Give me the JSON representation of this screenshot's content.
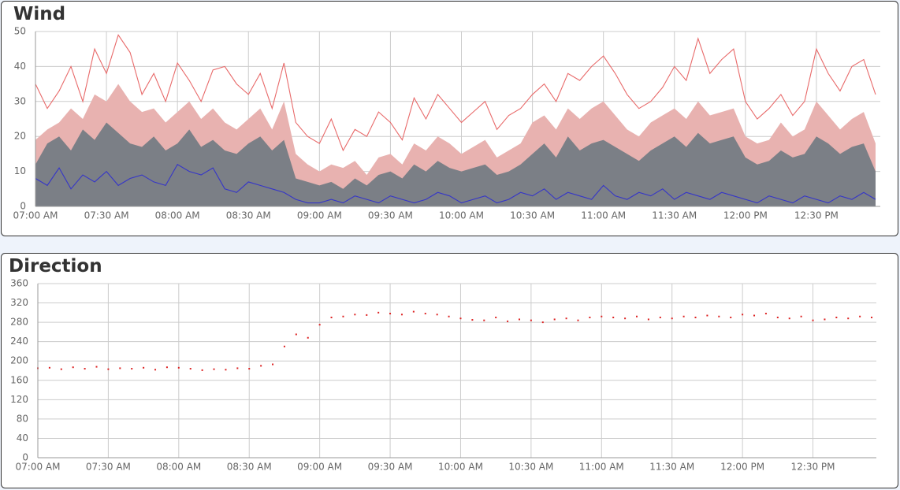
{
  "chart_data": [
    {
      "type": "area",
      "title": "Wind",
      "x": [
        "07:00 AM",
        "07:05 AM",
        "07:10 AM",
        "07:15 AM",
        "07:20 AM",
        "07:25 AM",
        "07:30 AM",
        "07:35 AM",
        "07:40 AM",
        "07:45 AM",
        "07:50 AM",
        "07:55 AM",
        "08:00 AM",
        "08:05 AM",
        "08:10 AM",
        "08:15 AM",
        "08:20 AM",
        "08:25 AM",
        "08:30 AM",
        "08:35 AM",
        "08:40 AM",
        "08:45 AM",
        "08:50 AM",
        "08:55 AM",
        "09:00 AM",
        "09:05 AM",
        "09:10 AM",
        "09:15 AM",
        "09:20 AM",
        "09:25 AM",
        "09:30 AM",
        "09:35 AM",
        "09:40 AM",
        "09:45 AM",
        "09:50 AM",
        "09:55 AM",
        "10:00 AM",
        "10:05 AM",
        "10:10 AM",
        "10:15 AM",
        "10:20 AM",
        "10:25 AM",
        "10:30 AM",
        "10:35 AM",
        "10:40 AM",
        "10:45 AM",
        "10:50 AM",
        "10:55 AM",
        "11:00 AM",
        "11:05 AM",
        "11:10 AM",
        "11:15 AM",
        "11:20 AM",
        "11:25 AM",
        "11:30 AM",
        "11:35 AM",
        "11:40 AM",
        "11:45 AM",
        "11:50 AM",
        "11:55 AM",
        "12:00 PM",
        "12:05 PM",
        "12:10 PM",
        "12:15 PM",
        "12:20 PM",
        "12:25 PM",
        "12:30 PM",
        "12:35 PM",
        "12:40 PM",
        "12:45 PM",
        "12:50 PM",
        "12:55 PM"
      ],
      "xlim": [
        "07:00 AM",
        "12:57 PM"
      ],
      "xticks": [
        "07:00 AM",
        "07:30 AM",
        "08:00 AM",
        "08:30 AM",
        "09:00 AM",
        "09:30 AM",
        "10:00 AM",
        "10:30 AM",
        "11:00 AM",
        "11:30 AM",
        "12:00 PM",
        "12:30 PM"
      ],
      "ylim": [
        0,
        50
      ],
      "yticks": [
        0,
        10,
        20,
        30,
        40,
        50
      ],
      "grid": true,
      "series": [
        {
          "type": "area",
          "color": "#e8b2b0",
          "values": [
            19,
            22,
            24,
            28,
            25,
            32,
            30,
            35,
            30,
            27,
            28,
            24,
            27,
            30,
            25,
            28,
            24,
            22,
            25,
            28,
            22,
            30,
            15,
            12,
            10,
            12,
            11,
            13,
            9,
            14,
            15,
            12,
            18,
            16,
            20,
            18,
            15,
            17,
            19,
            14,
            16,
            18,
            24,
            26,
            22,
            28,
            25,
            28,
            30,
            26,
            22,
            20,
            24,
            26,
            28,
            25,
            30,
            26,
            27,
            28,
            20,
            18,
            19,
            24,
            20,
            22,
            30,
            26,
            22,
            25,
            27,
            18
          ]
        },
        {
          "type": "area",
          "color": "#7b7f86",
          "values": [
            12,
            18,
            20,
            16,
            22,
            19,
            24,
            21,
            18,
            17,
            20,
            16,
            18,
            22,
            17,
            19,
            16,
            15,
            18,
            20,
            16,
            19,
            8,
            7,
            6,
            7,
            5,
            8,
            6,
            9,
            10,
            8,
            12,
            10,
            13,
            11,
            10,
            11,
            12,
            9,
            10,
            12,
            15,
            18,
            14,
            20,
            16,
            18,
            19,
            17,
            15,
            13,
            16,
            18,
            20,
            17,
            21,
            18,
            19,
            20,
            14,
            12,
            13,
            16,
            14,
            15,
            20,
            18,
            15,
            17,
            18,
            10
          ]
        },
        {
          "type": "line",
          "color": "#e86a6a",
          "values": [
            35,
            28,
            33,
            40,
            30,
            45,
            38,
            49,
            44,
            32,
            38,
            30,
            41,
            36,
            30,
            39,
            40,
            35,
            32,
            38,
            28,
            41,
            24,
            20,
            18,
            25,
            16,
            22,
            20,
            27,
            24,
            19,
            31,
            25,
            32,
            28,
            24,
            27,
            30,
            22,
            26,
            28,
            32,
            35,
            30,
            38,
            36,
            40,
            43,
            38,
            32,
            28,
            30,
            34,
            40,
            36,
            48,
            38,
            42,
            45,
            30,
            25,
            28,
            32,
            26,
            30,
            45,
            38,
            33,
            40,
            42,
            32
          ]
        },
        {
          "type": "line",
          "color": "#3535c8",
          "values": [
            8,
            6,
            11,
            5,
            9,
            7,
            10,
            6,
            8,
            9,
            7,
            6,
            12,
            10,
            9,
            11,
            5,
            4,
            7,
            6,
            5,
            4,
            2,
            1,
            1,
            2,
            1,
            3,
            2,
            1,
            3,
            2,
            1,
            2,
            4,
            3,
            1,
            2,
            3,
            1,
            2,
            4,
            3,
            5,
            2,
            4,
            3,
            2,
            6,
            3,
            2,
            4,
            3,
            5,
            2,
            4,
            3,
            2,
            4,
            3,
            2,
            1,
            3,
            2,
            1,
            3,
            2,
            1,
            3,
            2,
            4,
            2
          ]
        }
      ]
    },
    {
      "type": "scatter",
      "title": "Direction",
      "x": [
        "07:00 AM",
        "07:05 AM",
        "07:10 AM",
        "07:15 AM",
        "07:20 AM",
        "07:25 AM",
        "07:30 AM",
        "07:35 AM",
        "07:40 AM",
        "07:45 AM",
        "07:50 AM",
        "07:55 AM",
        "08:00 AM",
        "08:05 AM",
        "08:10 AM",
        "08:15 AM",
        "08:20 AM",
        "08:25 AM",
        "08:30 AM",
        "08:35 AM",
        "08:40 AM",
        "08:45 AM",
        "08:50 AM",
        "08:55 AM",
        "09:00 AM",
        "09:05 AM",
        "09:10 AM",
        "09:15 AM",
        "09:20 AM",
        "09:25 AM",
        "09:30 AM",
        "09:35 AM",
        "09:40 AM",
        "09:45 AM",
        "09:50 AM",
        "09:55 AM",
        "10:00 AM",
        "10:05 AM",
        "10:10 AM",
        "10:15 AM",
        "10:20 AM",
        "10:25 AM",
        "10:30 AM",
        "10:35 AM",
        "10:40 AM",
        "10:45 AM",
        "10:50 AM",
        "10:55 AM",
        "11:00 AM",
        "11:05 AM",
        "11:10 AM",
        "11:15 AM",
        "11:20 AM",
        "11:25 AM",
        "11:30 AM",
        "11:35 AM",
        "11:40 AM",
        "11:45 AM",
        "11:50 AM",
        "11:55 AM",
        "12:00 PM",
        "12:05 PM",
        "12:10 PM",
        "12:15 PM",
        "12:20 PM",
        "12:25 PM",
        "12:30 PM",
        "12:35 PM",
        "12:40 PM",
        "12:45 PM",
        "12:50 PM",
        "12:55 PM"
      ],
      "xlim": [
        "07:00 AM",
        "12:57 PM"
      ],
      "xticks": [
        "07:00 AM",
        "07:30 AM",
        "08:00 AM",
        "08:30 AM",
        "09:00 AM",
        "09:30 AM",
        "10:00 AM",
        "10:30 AM",
        "11:00 AM",
        "11:30 AM",
        "12:00 PM",
        "12:30 PM"
      ],
      "ylim": [
        0,
        360
      ],
      "yticks": [
        0,
        40,
        80,
        120,
        160,
        200,
        240,
        280,
        320,
        360
      ],
      "grid": true,
      "color": "#dd2222",
      "values": [
        185,
        186,
        183,
        187,
        184,
        188,
        183,
        185,
        184,
        186,
        182,
        187,
        186,
        184,
        181,
        183,
        182,
        185,
        184,
        190,
        193,
        230,
        255,
        248,
        275,
        290,
        292,
        296,
        295,
        300,
        298,
        296,
        302,
        298,
        296,
        292,
        288,
        285,
        284,
        290,
        282,
        286,
        284,
        280,
        286,
        288,
        284,
        290,
        292,
        290,
        288,
        292,
        286,
        290,
        288,
        292,
        290,
        294,
        292,
        290,
        296,
        294,
        298,
        290,
        288,
        292,
        284,
        286,
        290,
        288,
        292,
        290
      ]
    }
  ]
}
